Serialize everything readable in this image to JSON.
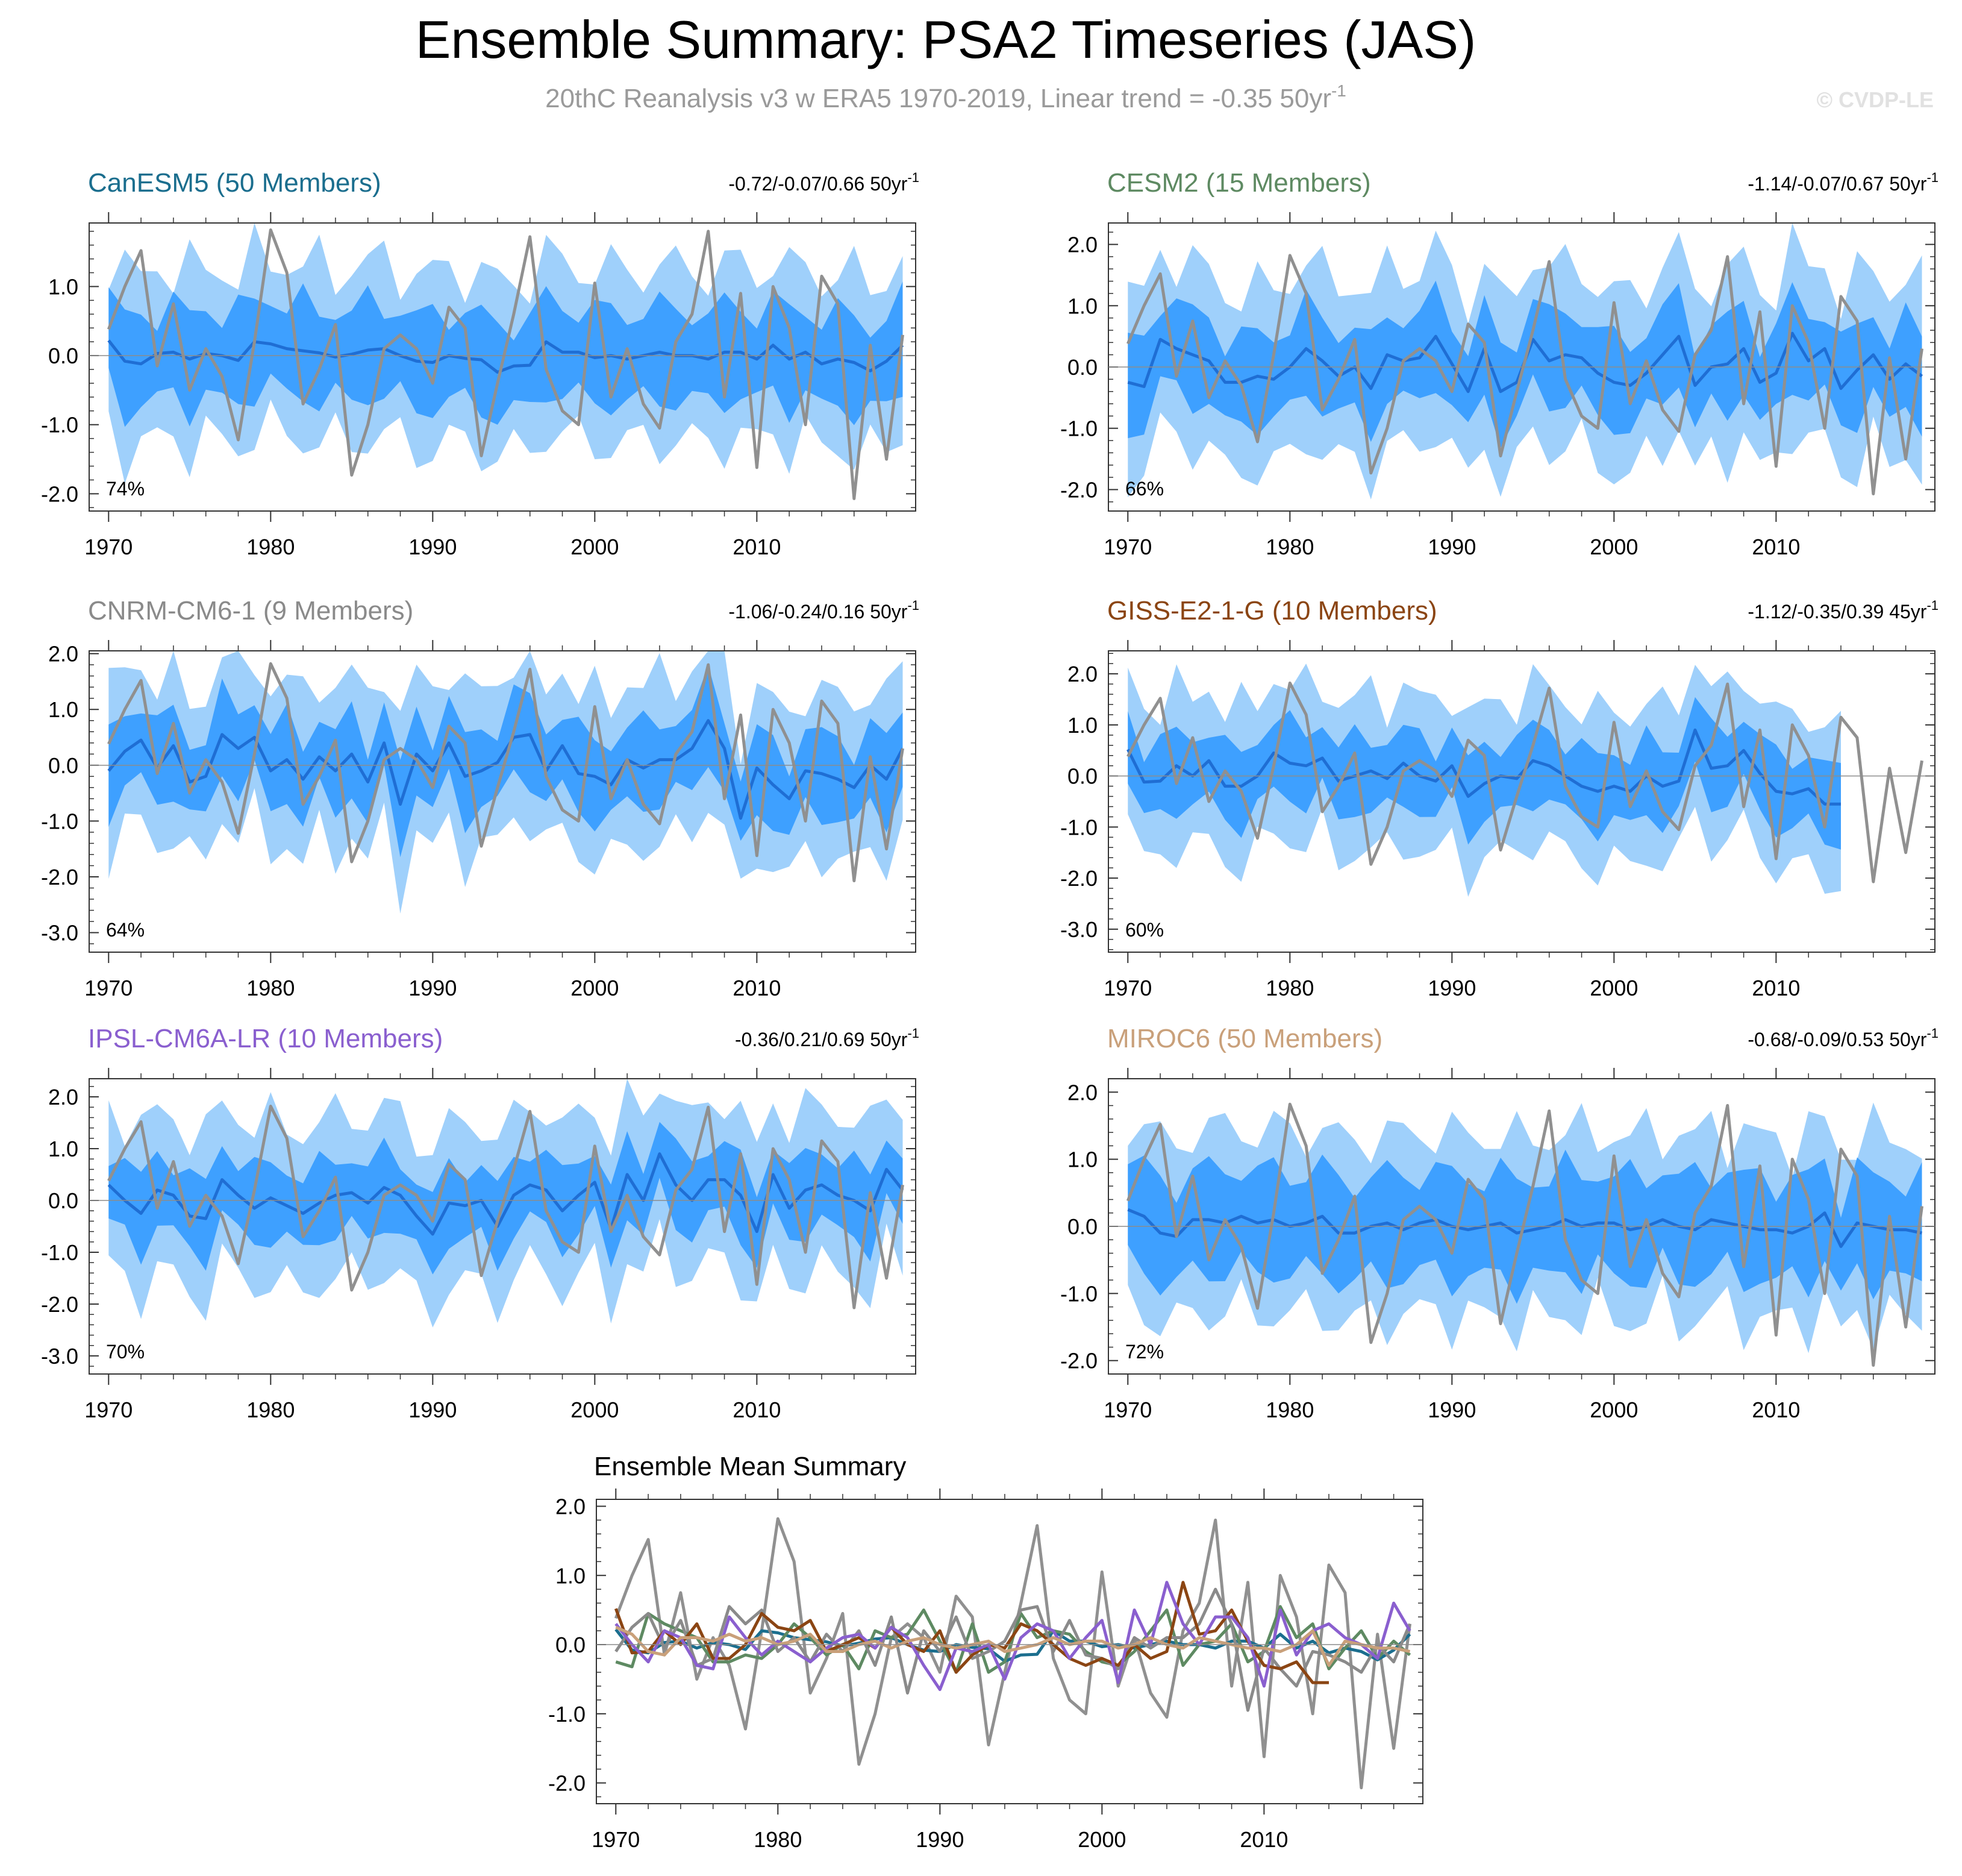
{
  "figure": {
    "title": "Ensemble Summary: PSA2 Timeseries (JAS)",
    "subtitle_main": "20thC Reanalysis v3 w ERA5 1970-2019, Linear trend = -0.35 50yr",
    "subtitle_sup": "-1",
    "watermark": "© CVDP-LE"
  },
  "colors": {
    "outer_band": "#9fd0fb",
    "inner_band": "#3ea0ff",
    "ens_mean": "#1f6ed4",
    "observed": "#909090",
    "axis": "#333333",
    "zero_line": "#8c8c8c"
  },
  "chart_data": {
    "type": "line",
    "observed_label": "20thC Reanalysis v3 w ERA5",
    "years": [
      1970,
      1971,
      1972,
      1973,
      1974,
      1975,
      1976,
      1977,
      1978,
      1979,
      1980,
      1981,
      1982,
      1983,
      1984,
      1985,
      1986,
      1987,
      1988,
      1989,
      1990,
      1991,
      1992,
      1993,
      1994,
      1995,
      1996,
      1997,
      1998,
      1999,
      2000,
      2001,
      2002,
      2003,
      2004,
      2005,
      2006,
      2007,
      2008,
      2009,
      2010,
      2011,
      2012,
      2013,
      2014,
      2015,
      2016,
      2017,
      2018,
      2019
    ],
    "observed": [
      0.38,
      1.0,
      1.52,
      -0.15,
      0.75,
      -0.5,
      0.1,
      -0.3,
      -1.22,
      0.2,
      1.82,
      1.2,
      -0.7,
      -0.2,
      0.45,
      -1.73,
      -1.0,
      0.1,
      0.3,
      0.1,
      -0.4,
      0.7,
      0.4,
      -1.45,
      -0.4,
      0.6,
      1.72,
      -0.2,
      -0.8,
      -1.0,
      1.05,
      -0.6,
      0.1,
      -0.7,
      -1.05,
      0.2,
      0.6,
      1.8,
      -0.6,
      0.9,
      -1.62,
      1.0,
      0.4,
      -1.0,
      1.15,
      0.75,
      -2.07,
      0.15,
      -1.5,
      0.3
    ],
    "panels": [
      {
        "id": "canesm5",
        "title": "CanESM5 (50 Members)",
        "title_color": "#1b6e8e",
        "trend": "-0.72/-0.07/0.66 50yr",
        "trend_sup": "-1",
        "pct": "74%",
        "ylim": [
          -2.25,
          1.92
        ],
        "yticks": [
          -2.0,
          -1.0,
          0.0,
          1.0
        ],
        "ylabels": [
          "-2.0",
          "-1.0",
          "0.0",
          "1.0"
        ],
        "ens_mean": [
          0.22,
          -0.08,
          -0.12,
          0.03,
          0.05,
          -0.05,
          0.03,
          0.0,
          -0.07,
          0.2,
          0.17,
          0.1,
          0.07,
          0.04,
          -0.02,
          0.02,
          0.08,
          0.1,
          0.0,
          -0.08,
          -0.1,
          0.0,
          -0.04,
          -0.06,
          -0.24,
          -0.15,
          -0.14,
          0.2,
          0.05,
          0.05,
          -0.03,
          0.0,
          -0.05,
          0.0,
          0.05,
          0.0,
          0.0,
          -0.05,
          0.05,
          0.05,
          -0.05,
          0.15,
          -0.05,
          0.05,
          -0.12,
          -0.05,
          -0.1,
          -0.22,
          -0.08,
          0.15
        ],
        "inner_hw": 0.65,
        "outer_hw": 1.25,
        "phase": 0.0
      },
      {
        "id": "cesm2",
        "title": "CESM2 (15 Members)",
        "title_color": "#5e8a62",
        "trend": "-1.14/-0.07/0.67 50yr",
        "trend_sup": "-1",
        "pct": "66%",
        "ylim": [
          -2.35,
          2.35
        ],
        "yticks": [
          -2.0,
          -1.0,
          0.0,
          1.0,
          2.0
        ],
        "ylabels": [
          "-2.0",
          "-1.0",
          "0.0",
          "1.0",
          "2.0"
        ],
        "ens_mean": [
          -0.25,
          -0.32,
          0.45,
          0.3,
          0.2,
          0.1,
          -0.25,
          -0.25,
          -0.15,
          -0.2,
          0.0,
          0.3,
          0.1,
          -0.15,
          0.0,
          -0.35,
          0.2,
          0.1,
          0.15,
          0.5,
          0.05,
          -0.4,
          0.3,
          -0.4,
          -0.25,
          0.45,
          0.1,
          0.2,
          0.15,
          -0.1,
          -0.25,
          -0.3,
          -0.1,
          0.2,
          0.5,
          -0.3,
          0.0,
          0.05,
          0.3,
          -0.25,
          -0.1,
          0.55,
          0.1,
          0.3,
          -0.35,
          -0.05,
          0.2,
          -0.2,
          0.05,
          -0.15
        ],
        "inner_hw": 0.7,
        "outer_hw": 1.45,
        "phase": 1.3
      },
      {
        "id": "cnrm",
        "title": "CNRM-CM6-1 (9 Members)",
        "title_color": "#8a8a8a",
        "trend": "-1.06/-0.24/0.16 50yr",
        "trend_sup": "-1",
        "pct": "64%",
        "ylim": [
          -3.35,
          2.05
        ],
        "yticks": [
          -3.0,
          -2.0,
          -1.0,
          0.0,
          1.0,
          2.0
        ],
        "ylabels": [
          "-3.0",
          "-2.0",
          "-1.0",
          "0.0",
          "1.0",
          "2.0"
        ],
        "ens_mean": [
          -0.1,
          0.25,
          0.45,
          -0.05,
          0.35,
          -0.3,
          -0.2,
          0.55,
          0.3,
          0.5,
          -0.1,
          0.1,
          -0.25,
          0.15,
          -0.1,
          0.2,
          -0.3,
          0.4,
          -0.7,
          0.2,
          -0.1,
          0.4,
          -0.2,
          -0.1,
          0.05,
          0.5,
          0.55,
          -0.1,
          0.35,
          -0.15,
          -0.2,
          -0.35,
          0.1,
          -0.05,
          0.1,
          0.1,
          0.3,
          0.8,
          0.3,
          -0.95,
          -0.05,
          -0.35,
          -0.6,
          -0.1,
          -0.15,
          -0.25,
          -0.4,
          0.0,
          -0.25,
          0.3
        ],
        "inner_hw": 0.7,
        "outer_hw": 1.45,
        "phase": 2.1
      },
      {
        "id": "giss",
        "title": "GISS-E2-1-G (10 Members)",
        "title_color": "#8b4513",
        "trend": "-1.12/-0.35/0.39 45yr",
        "trend_sup": "-1",
        "pct": "60%",
        "ylim": [
          -3.45,
          2.45
        ],
        "yticks": [
          -3.0,
          -2.0,
          -1.0,
          0.0,
          1.0,
          2.0
        ],
        "ylabels": [
          "-3.0",
          "-2.0",
          "-1.0",
          "0.0",
          "1.0",
          "2.0"
        ],
        "ens_mean": [
          0.52,
          -0.12,
          -0.1,
          0.2,
          0.0,
          0.3,
          -0.2,
          -0.2,
          0.0,
          0.45,
          0.25,
          0.2,
          0.35,
          -0.1,
          0.0,
          0.1,
          -0.05,
          0.25,
          0.0,
          -0.1,
          0.2,
          -0.4,
          -0.15,
          0.0,
          -0.05,
          0.3,
          0.2,
          0.0,
          -0.2,
          -0.3,
          -0.2,
          -0.3,
          0.0,
          -0.2,
          -0.1,
          0.9,
          0.15,
          0.2,
          0.5,
          0.05,
          -0.3,
          -0.35,
          -0.25,
          -0.55,
          -0.55
        ],
        "inner_hw": 0.7,
        "outer_hw": 1.5,
        "phase": 3.4
      },
      {
        "id": "ipsl",
        "title": "IPSL-CM6A-LR (10 Members)",
        "title_color": "#8a5fcf",
        "trend": "-0.36/0.21/0.69 50yr",
        "trend_sup": "-1",
        "pct": "70%",
        "ylim": [
          -3.35,
          2.35
        ],
        "yticks": [
          -3.0,
          -2.0,
          -1.0,
          0.0,
          1.0,
          2.0
        ],
        "ylabels": [
          "-3.0",
          "-2.0",
          "-1.0",
          "0.0",
          "1.0",
          "2.0"
        ],
        "ens_mean": [
          0.3,
          0.0,
          -0.25,
          0.2,
          0.1,
          -0.3,
          -0.35,
          0.4,
          0.1,
          -0.15,
          0.05,
          -0.1,
          -0.25,
          -0.05,
          0.1,
          0.15,
          -0.05,
          0.25,
          0.1,
          -0.3,
          -0.65,
          -0.05,
          -0.1,
          0.0,
          -0.5,
          0.1,
          0.3,
          0.2,
          -0.2,
          0.1,
          0.35,
          -0.55,
          0.5,
          0.0,
          0.9,
          0.3,
          0.0,
          0.4,
          0.4,
          0.1,
          -0.6,
          0.5,
          -0.15,
          0.2,
          0.3,
          0.1,
          0.0,
          -0.2,
          0.6,
          0.2
        ],
        "inner_hw": 0.7,
        "outer_hw": 1.55,
        "phase": 4.6
      },
      {
        "id": "miroc6",
        "title": "MIROC6 (50 Members)",
        "title_color": "#c9a07a",
        "trend": "-0.68/-0.09/0.53 50yr",
        "trend_sup": "-1",
        "pct": "72%",
        "ylim": [
          -2.2,
          2.2
        ],
        "yticks": [
          -2.0,
          -1.0,
          0.0,
          1.0,
          2.0
        ],
        "ylabels": [
          "-2.0",
          "-1.0",
          "0.0",
          "1.0",
          "2.0"
        ],
        "ens_mean": [
          0.25,
          0.15,
          -0.1,
          -0.15,
          0.1,
          0.1,
          0.05,
          0.15,
          0.05,
          0.1,
          0.0,
          0.05,
          0.15,
          -0.1,
          -0.1,
          0.0,
          0.05,
          -0.05,
          0.05,
          0.1,
          0.0,
          -0.05,
          0.0,
          0.05,
          -0.1,
          -0.05,
          0.0,
          0.1,
          0.0,
          0.05,
          0.05,
          -0.05,
          0.0,
          0.1,
          0.0,
          -0.05,
          0.1,
          0.05,
          0.0,
          -0.05,
          -0.05,
          -0.1,
          0.0,
          0.2,
          -0.3,
          0.05,
          0.0,
          -0.05,
          -0.05,
          -0.1
        ],
        "inner_hw": 0.75,
        "outer_hw": 1.35,
        "phase": 5.7
      }
    ],
    "summary": {
      "title": "Ensemble Mean Summary",
      "ylim": [
        -2.3,
        2.1
      ],
      "yticks": [
        -2.0,
        -1.0,
        0.0,
        1.0,
        2.0
      ],
      "ylabels": [
        "-2.0",
        "-1.0",
        "0.0",
        "1.0",
        "2.0"
      ]
    },
    "xticks": [
      1970,
      1980,
      1990,
      2000,
      2010
    ],
    "xlabels": [
      "1970",
      "1980",
      "1990",
      "2000",
      "2010"
    ]
  }
}
